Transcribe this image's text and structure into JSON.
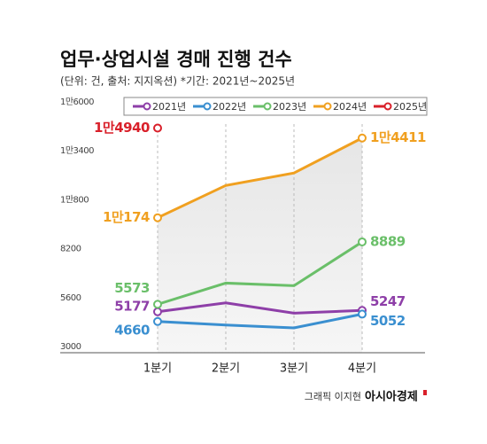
{
  "chart_data": {
    "type": "line",
    "title": "업무·상업시설 경매 진행 건수",
    "subtitle": "(단위: 건, 출처: 지지옥션) *기간: 2021년~2025년",
    "source": "그래픽 이지현",
    "logo": "아시아경제",
    "categories": [
      "1분기",
      "2분기",
      "3분기",
      "4분기"
    ],
    "ylim": [
      3000,
      16000
    ],
    "yticks": [
      3000,
      5600,
      8200,
      {
        "value": 10800,
        "label": "1만800"
      },
      {
        "value": 13400,
        "label": "1만3400"
      },
      {
        "value": 16000,
        "label": "1만6000"
      }
    ],
    "series": [
      {
        "name": "2021년",
        "color": "#8e3fa8",
        "values": [
          5177,
          5650,
          5100,
          5247
        ],
        "value_labels": [
          "5177",
          null,
          null,
          "5247"
        ]
      },
      {
        "name": "2022년",
        "color": "#3a8fd0",
        "values": [
          4660,
          4470,
          4320,
          5052
        ],
        "value_labels": [
          "4660",
          null,
          null,
          "5052"
        ]
      },
      {
        "name": "2023년",
        "color": "#6abf69",
        "values": [
          5573,
          6700,
          6560,
          8889
        ],
        "value_labels": [
          "5573",
          null,
          null,
          "8889"
        ]
      },
      {
        "name": "2024년",
        "color": "#f0a020",
        "values": [
          10174,
          11890,
          12550,
          14411
        ],
        "value_labels": [
          "1만174",
          null,
          null,
          "1만4411"
        ]
      },
      {
        "name": "2025년",
        "color": "#d9202a",
        "values": [
          14940,
          null,
          null,
          null
        ],
        "value_labels": [
          "1만4940",
          null,
          null,
          null
        ]
      }
    ]
  }
}
